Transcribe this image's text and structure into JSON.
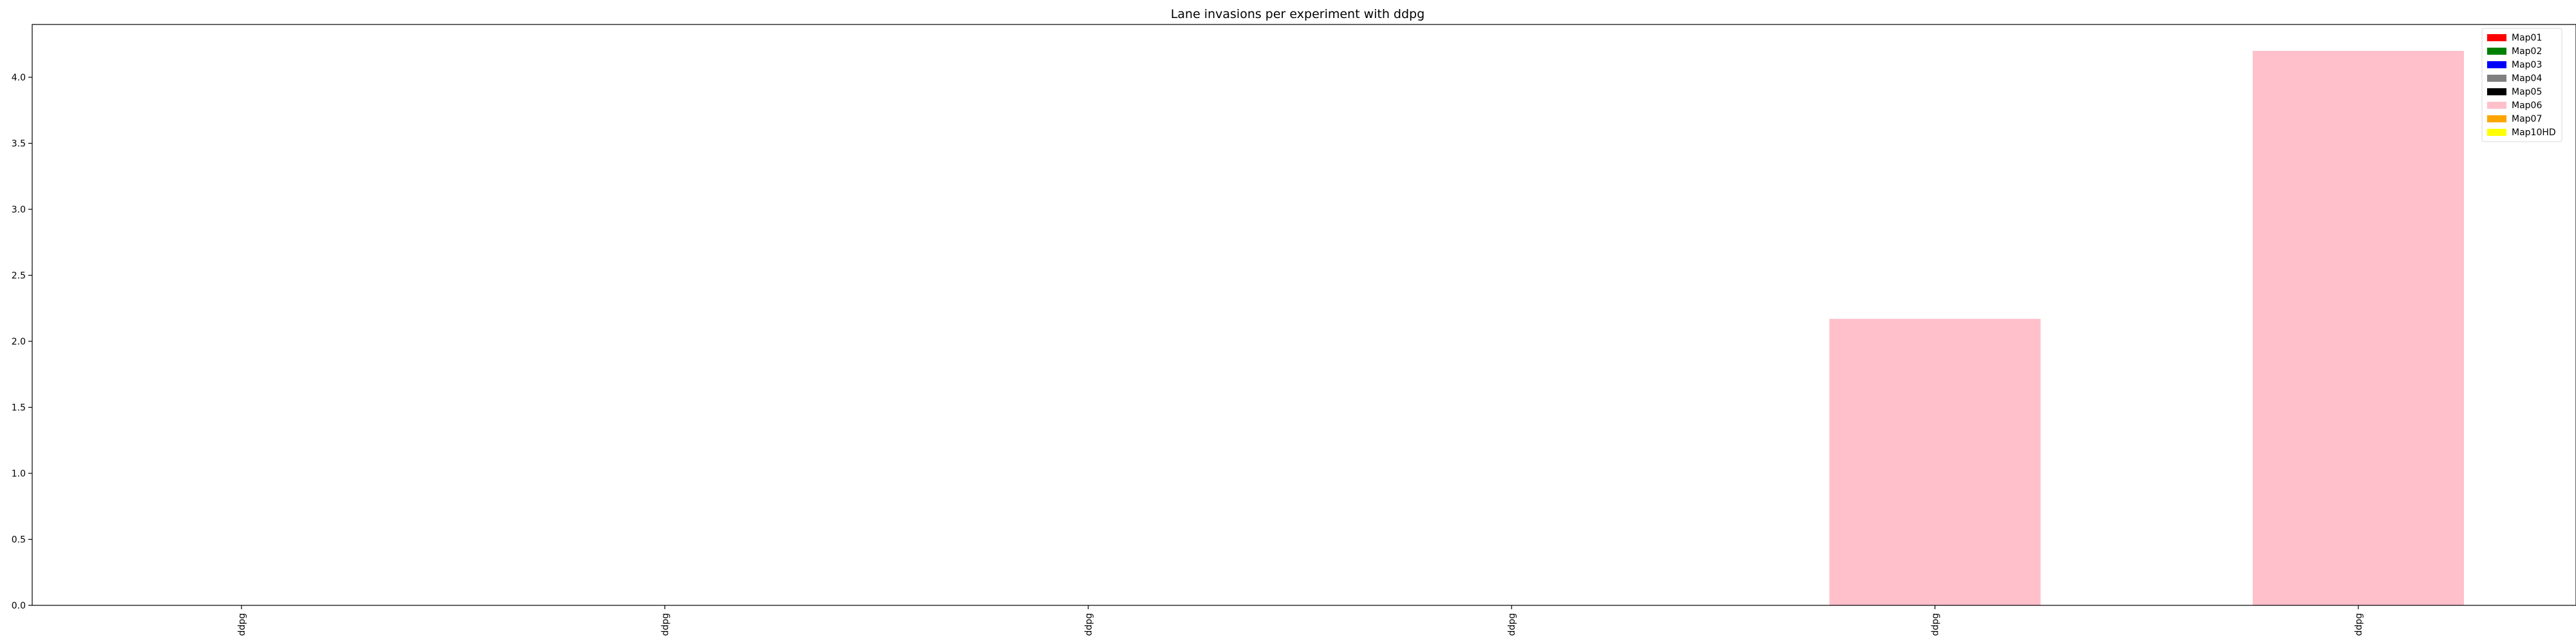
{
  "chart_data": {
    "type": "bar",
    "title": "Lane invasions per experiment with ddpg",
    "xlabel": "",
    "ylabel": "",
    "categories": [
      "ddpg",
      "ddpg",
      "ddpg",
      "ddpg",
      "ddpg",
      "ddpg"
    ],
    "ylim": [
      0,
      4.4
    ],
    "yticks": [
      "0.0",
      "0.5",
      "1.0",
      "1.5",
      "2.0",
      "2.5",
      "3.0",
      "3.5",
      "4.0"
    ],
    "grid": false,
    "legend_position": "top-right",
    "series": [
      {
        "name": "Map01",
        "color": "#ff0000",
        "values": [
          0,
          0,
          0,
          0,
          0,
          0
        ]
      },
      {
        "name": "Map02",
        "color": "#008000",
        "values": [
          0,
          0,
          0,
          0,
          0,
          0
        ]
      },
      {
        "name": "Map03",
        "color": "#0000ff",
        "values": [
          0,
          0,
          0,
          0,
          0,
          0
        ]
      },
      {
        "name": "Map04",
        "color": "#808080",
        "values": [
          0,
          0,
          0,
          0,
          0,
          0
        ]
      },
      {
        "name": "Map05",
        "color": "#000000",
        "values": [
          0,
          0,
          0,
          0,
          0,
          0
        ]
      },
      {
        "name": "Map06",
        "color": "#ffc0cb",
        "values": [
          0,
          0,
          0,
          0,
          2.17,
          4.2
        ]
      },
      {
        "name": "Map07",
        "color": "#ffa500",
        "values": [
          0,
          0,
          0,
          0,
          0,
          0
        ]
      },
      {
        "name": "Map10HD",
        "color": "#ffff00",
        "values": [
          0,
          0,
          0,
          0,
          0,
          0
        ]
      }
    ]
  }
}
